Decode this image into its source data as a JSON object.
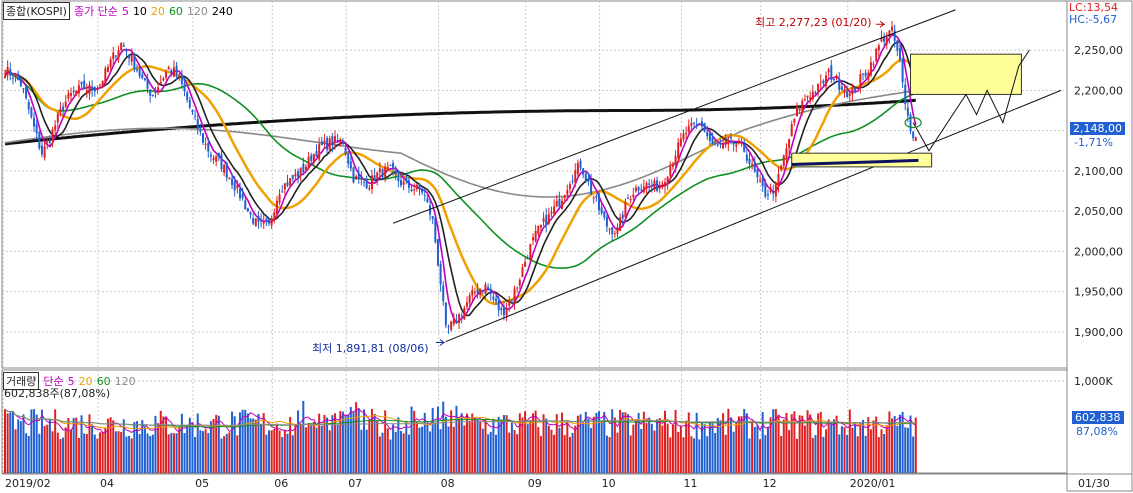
{
  "header": {
    "instrument": "종합(KOSPI)",
    "ma_type": "종가 단순",
    "ma_periods": [
      "5",
      "10",
      "20",
      "60",
      "120",
      "240"
    ],
    "ma_colors": [
      "#c000c0",
      "#000000",
      "#f0a000",
      "#109020",
      "#888888",
      "#000000"
    ]
  },
  "volume_header": {
    "title": "거래량",
    "ma_type": "단순",
    "ma_periods": [
      "5",
      "20",
      "60",
      "120"
    ],
    "ma_colors": [
      "#c000c0",
      "#f0a000",
      "#109020",
      "#888888"
    ],
    "last_value_text": "602,838주(87,08%)"
  },
  "right_labels": {
    "lc": "LC:13,54",
    "hc": "HC:-5,67",
    "current_price": "2,148,00",
    "change_pct": "-1,71%",
    "volume_value": "602,838",
    "volume_pct": "87,08%"
  },
  "annotations": {
    "high": "최고 2,277,23 (01/20)",
    "low": "최저 1,891,81 (08/06)"
  },
  "colors": {
    "up": "#e02020",
    "down": "#2060d0",
    "grid": "#c8c8c8",
    "ma240": "#111111",
    "ma60": "#109020",
    "ma120": "#888888",
    "ma20": "#f0a000",
    "ma5": "#c000c0",
    "ma10": "#222222",
    "highlight_fill": "#ffff99",
    "navy_line": "#101060"
  },
  "chart_data": {
    "type": "candlestick",
    "title": "종합(KOSPI)",
    "price_axis": {
      "min": 1880,
      "max": 2280,
      "ticks": [
        1900,
        1950,
        2000,
        2050,
        2100,
        2150,
        2200,
        2250
      ],
      "tick_labels": [
        "1,900,00",
        "1,950,00",
        "2,000,00",
        "2,050,00",
        "2,100,00",
        "2,150,00",
        "2,200,00",
        "2,250,00"
      ]
    },
    "volume_axis": {
      "max": 1000,
      "ticks": [
        1000
      ],
      "tick_labels": [
        "1,000K"
      ],
      "unit": "K"
    },
    "x_labels": [
      "2019/02",
      "04",
      "05",
      "06",
      "07",
      "08",
      "09",
      "10",
      "11",
      "12",
      "2020/01",
      "01/30"
    ],
    "x_label_bars": [
      0,
      36,
      72,
      102,
      130,
      165,
      198,
      226,
      257,
      287,
      320,
      423
    ],
    "total_bars": 346,
    "anchors": [
      [
        0,
        2225
      ],
      [
        6,
        2200
      ],
      [
        14,
        2130
      ],
      [
        22,
        2175
      ],
      [
        30,
        2205
      ],
      [
        36,
        2215
      ],
      [
        44,
        2250
      ],
      [
        50,
        2230
      ],
      [
        56,
        2200
      ],
      [
        62,
        2220
      ],
      [
        66,
        2210
      ],
      [
        72,
        2170
      ],
      [
        78,
        2120
      ],
      [
        84,
        2090
      ],
      [
        90,
        2070
      ],
      [
        96,
        2035
      ],
      [
        100,
        2025
      ],
      [
        104,
        2070
      ],
      [
        110,
        2100
      ],
      [
        116,
        2120
      ],
      [
        122,
        2125
      ],
      [
        128,
        2140
      ],
      [
        132,
        2100
      ],
      [
        138,
        2080
      ],
      [
        146,
        2100
      ],
      [
        152,
        2090
      ],
      [
        158,
        2070
      ],
      [
        162,
        2030
      ],
      [
        165,
        1960
      ],
      [
        167,
        1905
      ],
      [
        170,
        1920
      ],
      [
        176,
        1940
      ],
      [
        182,
        1950
      ],
      [
        188,
        1930
      ],
      [
        194,
        1960
      ],
      [
        198,
        1990
      ],
      [
        202,
        2020
      ],
      [
        208,
        2060
      ],
      [
        214,
        2090
      ],
      [
        218,
        2100
      ],
      [
        222,
        2070
      ],
      [
        228,
        2040
      ],
      [
        232,
        2030
      ],
      [
        236,
        2060
      ],
      [
        242,
        2080
      ],
      [
        248,
        2090
      ],
      [
        254,
        2120
      ],
      [
        258,
        2140
      ],
      [
        264,
        2160
      ],
      [
        268,
        2140
      ],
      [
        274,
        2130
      ],
      [
        280,
        2120
      ],
      [
        284,
        2100
      ],
      [
        288,
        2080
      ],
      [
        292,
        2080
      ],
      [
        296,
        2120
      ],
      [
        300,
        2170
      ],
      [
        304,
        2200
      ],
      [
        308,
        2210
      ],
      [
        312,
        2220
      ],
      [
        316,
        2200
      ],
      [
        320,
        2190
      ],
      [
        324,
        2220
      ],
      [
        328,
        2240
      ],
      [
        332,
        2260
      ],
      [
        336,
        2265
      ],
      [
        339,
        2230
      ],
      [
        341,
        2180
      ],
      [
        343,
        2160
      ],
      [
        345,
        2148
      ]
    ],
    "ma_series": [
      {
        "name": "5",
        "color": "#c000c0",
        "smooth": 5
      },
      {
        "name": "10",
        "color": "#222222",
        "smooth": 10
      },
      {
        "name": "20",
        "color": "#f0a000",
        "smooth": 20
      },
      {
        "name": "60",
        "color": "#109020",
        "smooth": 55
      },
      {
        "name": "120",
        "color": "#888888",
        "smooth": 100
      },
      {
        "name": "240",
        "color": "#111111",
        "smooth": 180
      }
    ],
    "channel_upper": [
      [
        147,
        2035
      ],
      [
        360,
        2300
      ]
    ],
    "channel_lower": [
      [
        167,
        1888
      ],
      [
        400,
        2200
      ]
    ],
    "highlight_boxes": [
      {
        "from_bar": 343,
        "to_bar": 385,
        "low": 2195,
        "high": 2245
      },
      {
        "from_bar": 298,
        "to_bar": 351,
        "low": 2105,
        "high": 2122
      }
    ],
    "forecast_path": [
      [
        344,
        2160
      ],
      [
        350,
        2125
      ],
      [
        364,
        2195
      ],
      [
        368,
        2170
      ],
      [
        372,
        2200
      ],
      [
        378,
        2160
      ],
      [
        384,
        2230
      ],
      [
        388,
        2250
      ]
    ],
    "high_point": {
      "bar": 333,
      "value": 2277.23,
      "label": "최고 2,277,23 (01/20)"
    },
    "low_point": {
      "bar": 167,
      "value": 1891.81,
      "label": "최저 1,891,81 (08/06)"
    },
    "volume_avg_k": 560,
    "last": {
      "close": 2148.0,
      "change_pct": -1.71,
      "volume": 602838,
      "volume_pct": 87.08
    }
  }
}
